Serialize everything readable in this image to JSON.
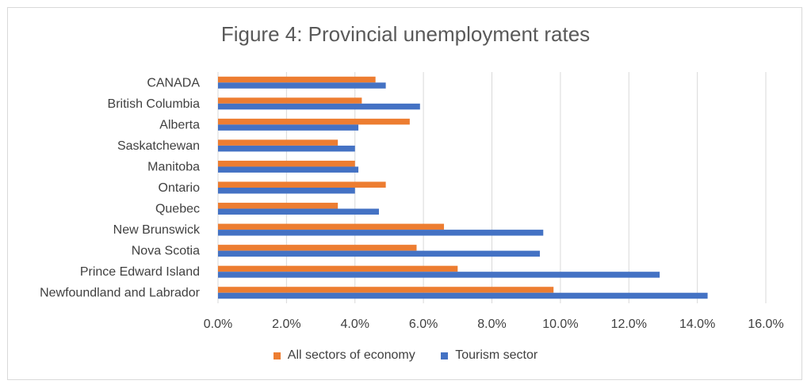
{
  "chart_data": {
    "type": "bar",
    "orientation": "horizontal",
    "title": "Figure 4: Provincial unemployment rates",
    "categories": [
      "CANADA",
      "British Columbia",
      "Alberta",
      "Saskatchewan",
      "Manitoba",
      "Ontario",
      "Quebec",
      "New Brunswick",
      "Nova Scotia",
      "Prince Edward Island",
      "Newfoundland and Labrador"
    ],
    "series": [
      {
        "name": "All sectors of economy",
        "color": "#ed7d31",
        "values": [
          0.046,
          0.042,
          0.056,
          0.035,
          0.04,
          0.049,
          0.035,
          0.066,
          0.058,
          0.07,
          0.098
        ]
      },
      {
        "name": "Tourism sector",
        "color": "#4472c4",
        "values": [
          0.049,
          0.059,
          0.041,
          0.04,
          0.041,
          0.04,
          0.047,
          0.095,
          0.094,
          0.129,
          0.143
        ]
      }
    ],
    "xlim": [
      0,
      0.16
    ],
    "xticks": [
      "0.0%",
      "2.0%",
      "4.0%",
      "6.0%",
      "8.0%",
      "10.0%",
      "12.0%",
      "14.0%",
      "16.0%"
    ],
    "grid": true,
    "legend_position": "bottom"
  }
}
